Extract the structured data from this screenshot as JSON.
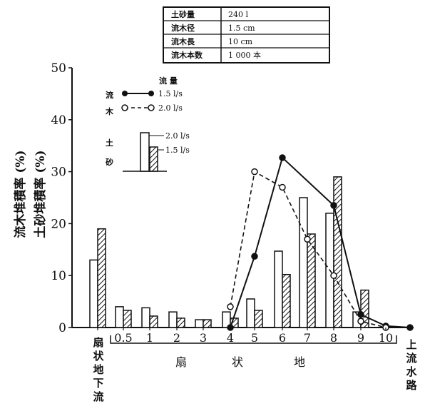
{
  "params_table": [
    {
      "label": "土砂量",
      "value": "240 l"
    },
    {
      "label": "流木径",
      "value": "1.5 cm"
    },
    {
      "label": "流木長",
      "value": "10 cm"
    },
    {
      "label": "流木本数",
      "value": "1 000 本"
    }
  ],
  "y_axis": {
    "label_wood": "流木堆積率 (%)",
    "label_sediment": "土砂堆積率 (%)",
    "ticks": [
      "0",
      "10",
      "20",
      "30",
      "40",
      "50"
    ]
  },
  "legend": {
    "flow_title": "流 量",
    "wood_label": [
      "流",
      "木"
    ],
    "sediment_label": [
      "土",
      "砂"
    ],
    "line_2": "1.5 l/s",
    "line_1": "2.0 l/s",
    "bar_1": "2.0 l/s",
    "bar_2": "1.5 l/s"
  },
  "x_axis": {
    "categories": [
      "扇状地下流",
      "0.5",
      "1",
      "2",
      "3",
      "4",
      "5",
      "6",
      "7",
      "8",
      "9",
      "10",
      "上流水路"
    ],
    "upstream_label": [
      "扇",
      "状",
      "地",
      "下",
      "流"
    ],
    "downstream_label": [
      "上",
      "流",
      "水",
      "路"
    ],
    "fan_label": [
      "扇",
      "状",
      "地"
    ]
  },
  "chart_data": {
    "type": "bar+line",
    "ylim": [
      0,
      50
    ],
    "x_positions": [
      "扇状地下流",
      0.5,
      1,
      2,
      3,
      4,
      5,
      6,
      7,
      8,
      9,
      10,
      "上流水路"
    ],
    "sediment_bars": [
      {
        "x": "扇状地下流",
        "q2_0": 13,
        "q1_5": 19
      },
      {
        "x": 0.5,
        "q2_0": 4,
        "q1_5": 3.3
      },
      {
        "x": 1,
        "q2_0": 3.8,
        "q1_5": 2.2
      },
      {
        "x": 2,
        "q2_0": 3,
        "q1_5": 1.8
      },
      {
        "x": 3,
        "q2_0": 1.5,
        "q1_5": 1.5
      },
      {
        "x": 4,
        "q2_0": 3,
        "q1_5": 1.8
      },
      {
        "x": 5,
        "q2_0": 5.5,
        "q1_5": 3.3
      },
      {
        "x": 6,
        "q2_0": 14.7,
        "q1_5": 10.2
      },
      {
        "x": 7,
        "q2_0": 25,
        "q1_5": 18
      },
      {
        "x": 8,
        "q2_0": 22,
        "q1_5": 29
      },
      {
        "x": 9,
        "q2_0": 3,
        "q1_5": 7.2
      }
    ],
    "wood_lines": [
      {
        "name": "1.5 l/s",
        "style": "solid-filled",
        "points": [
          [
            4,
            0
          ],
          [
            5,
            13.7
          ],
          [
            6,
            32.7
          ],
          [
            8,
            23.5
          ],
          [
            9,
            2.5
          ],
          [
            10,
            0.3
          ],
          [
            "上流水路",
            0
          ]
        ]
      },
      {
        "name": "2.0 l/s",
        "style": "dashed-open",
        "points": [
          [
            4,
            4
          ],
          [
            5,
            30
          ],
          [
            6,
            27
          ],
          [
            7,
            17
          ],
          [
            8,
            10
          ],
          [
            9,
            1.2
          ],
          [
            10,
            0
          ]
        ]
      }
    ]
  }
}
